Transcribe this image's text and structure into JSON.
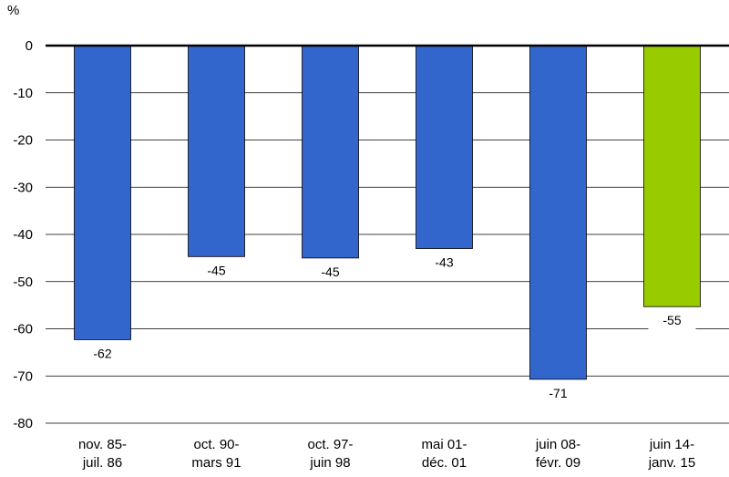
{
  "chart_data": {
    "type": "bar",
    "title": "",
    "unit_label": "%",
    "xlabel": "",
    "ylabel": "",
    "ylim": [
      -80,
      0
    ],
    "yticks": [
      0,
      -10,
      -20,
      -30,
      -40,
      -50,
      -60,
      -70,
      -80
    ],
    "grid": true,
    "categories": [
      [
        "nov. 85-",
        "juil. 86"
      ],
      [
        "oct. 90-",
        "mars 91"
      ],
      [
        "oct. 97-",
        "juin 98"
      ],
      [
        "mai 01-",
        "déc. 01"
      ],
      [
        "juin 08-",
        "févr. 09"
      ],
      [
        "juin 14-",
        "janv. 15"
      ]
    ],
    "values": [
      -62.3,
      -44.7,
      -45.0,
      -43.0,
      -70.7,
      -55.3
    ],
    "data_labels": [
      "-62",
      "-45",
      "-45",
      "-43",
      "-71",
      "-55"
    ],
    "colors": [
      "#3366cc",
      "#3366cc",
      "#3366cc",
      "#3366cc",
      "#3366cc",
      "#99cc00"
    ],
    "gridline_color": "#000000",
    "zero_line_color": "#000000"
  }
}
